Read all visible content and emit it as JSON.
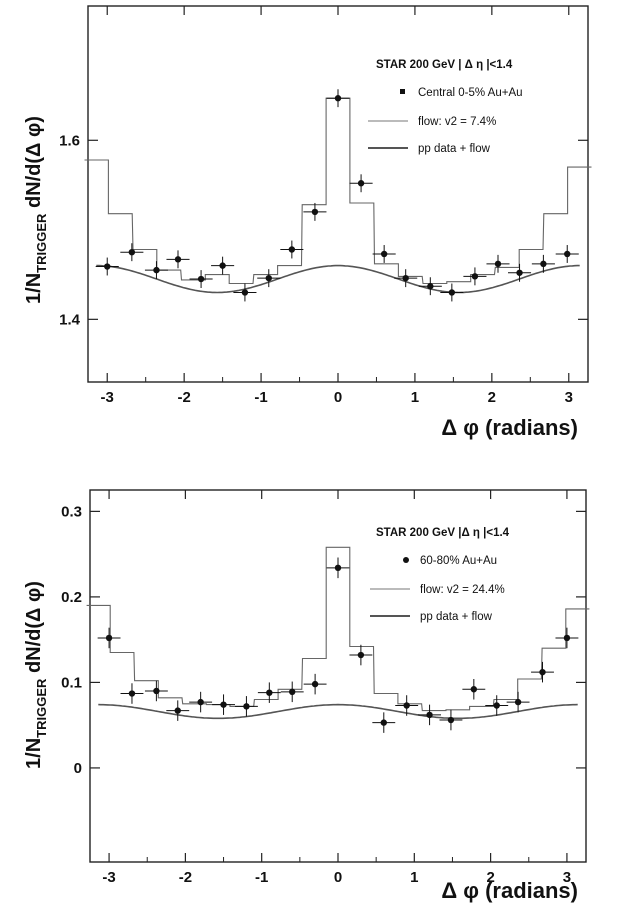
{
  "chart_data": [
    {
      "type": "scatter",
      "xlabel": "Δ φ (radians)",
      "ylabel": "1/N_TRIGGER dN/d(Δ φ)",
      "xlim": [
        -3.25,
        3.25
      ],
      "ylim": [
        1.33,
        1.75
      ],
      "x_ticks": [
        -3,
        -2,
        -1,
        0,
        1,
        2,
        3
      ],
      "x_tick_labels": [
        "-3",
        "-2",
        "-1",
        "0",
        "1",
        "2",
        "3"
      ],
      "y_ticks": [
        1.4,
        1.6
      ],
      "y_tick_labels": [
        "1.4",
        "1.6"
      ],
      "legend": {
        "position": "top-right",
        "title": "STAR 200 GeV | Δ η |<1.4",
        "entries": [
          {
            "label": "Central 0-5% Au+Au",
            "marker": "square-point"
          },
          {
            "label": "flow: v2 = 7.4%",
            "marker": "thin-line"
          },
          {
            "label": "pp data + flow",
            "marker": "thick-line"
          }
        ]
      },
      "series": [
        {
          "name": "Central 0-5% Au+Au",
          "kind": "points",
          "x": [
            -3.0,
            -2.68,
            -2.36,
            -2.08,
            -1.78,
            -1.5,
            -1.21,
            -0.9,
            -0.6,
            -0.3,
            0.0,
            0.3,
            0.6,
            0.88,
            1.2,
            1.48,
            1.78,
            2.08,
            2.36,
            2.67,
            2.98
          ],
          "values": [
            1.459,
            1.475,
            1.455,
            1.467,
            1.445,
            1.46,
            1.43,
            1.446,
            1.478,
            1.52,
            1.647,
            1.552,
            1.473,
            1.446,
            1.437,
            1.43,
            1.448,
            1.462,
            1.452,
            1.462,
            1.473
          ],
          "xerr": 0.15,
          "yerr": 0.01
        },
        {
          "name": "flow: v2 = 7.4%",
          "kind": "step",
          "x": [
            -3.14,
            -2.83,
            -2.51,
            -2.2,
            -1.88,
            -1.57,
            -1.26,
            -0.94,
            -0.63,
            -0.31,
            0.0,
            0.31,
            0.63,
            0.94,
            1.26,
            1.57,
            1.88,
            2.2,
            2.51,
            2.83,
            3.14
          ],
          "values": [
            1.578,
            1.518,
            1.478,
            1.455,
            1.444,
            1.45,
            1.44,
            1.45,
            1.46,
            1.528,
            1.647,
            1.53,
            1.462,
            1.448,
            1.44,
            1.442,
            1.45,
            1.458,
            1.478,
            1.518,
            1.57
          ]
        },
        {
          "name": "pp data + flow",
          "kind": "curve",
          "baseline": 1.445,
          "amp": 0.015
        }
      ]
    },
    {
      "type": "scatter",
      "xlabel": "Δ φ (radians)",
      "ylabel": "1/N_TRIGGER dN/d(Δ φ)",
      "xlim": [
        -3.25,
        3.25
      ],
      "ylim": [
        -0.11,
        0.325
      ],
      "x_ticks": [
        -3,
        -2,
        -1,
        0,
        1,
        2,
        3
      ],
      "x_tick_labels": [
        "-3",
        "-2",
        "-1",
        "0",
        "1",
        "2",
        "3"
      ],
      "y_ticks": [
        0,
        0.1,
        0.2,
        0.3
      ],
      "y_tick_labels": [
        "0",
        "0.1",
        "0.2",
        "0.3"
      ],
      "legend": {
        "position": "top-right",
        "title": "STAR 200 GeV |Δ η |<1.4",
        "entries": [
          {
            "label": "60-80% Au+Au",
            "marker": "point"
          },
          {
            "label": "flow: v2 = 24.4%",
            "marker": "thin-line"
          },
          {
            "label": "pp data + flow",
            "marker": "thick-line"
          }
        ]
      },
      "series": [
        {
          "name": "60-80% Au+Au",
          "kind": "points",
          "x": [
            -3.0,
            -2.7,
            -2.38,
            -2.1,
            -1.8,
            -1.5,
            -1.2,
            -0.9,
            -0.6,
            -0.3,
            0.0,
            0.3,
            0.6,
            0.9,
            1.2,
            1.48,
            1.78,
            2.08,
            2.36,
            2.68,
            3.0
          ],
          "values": [
            0.152,
            0.087,
            0.09,
            0.067,
            0.077,
            0.074,
            0.072,
            0.088,
            0.089,
            0.098,
            0.234,
            0.132,
            0.053,
            0.073,
            0.062,
            0.056,
            0.092,
            0.073,
            0.077,
            0.112,
            0.152
          ],
          "xerr": 0.15,
          "yerr": 0.012
        },
        {
          "name": "flow: v2 = 24.4%",
          "kind": "step",
          "x": [
            -3.14,
            -2.83,
            -2.51,
            -2.2,
            -1.88,
            -1.57,
            -1.26,
            -0.94,
            -0.63,
            -0.31,
            0.0,
            0.31,
            0.63,
            0.94,
            1.26,
            1.57,
            1.88,
            2.2,
            2.51,
            2.83,
            3.14
          ],
          "values": [
            0.19,
            0.135,
            0.102,
            0.082,
            0.075,
            0.074,
            0.072,
            0.08,
            0.092,
            0.128,
            0.258,
            0.142,
            0.087,
            0.075,
            0.067,
            0.068,
            0.072,
            0.08,
            0.104,
            0.14,
            0.186
          ]
        },
        {
          "name": "pp data + flow",
          "kind": "curve",
          "baseline": 0.066,
          "amp": 0.008
        }
      ]
    }
  ]
}
